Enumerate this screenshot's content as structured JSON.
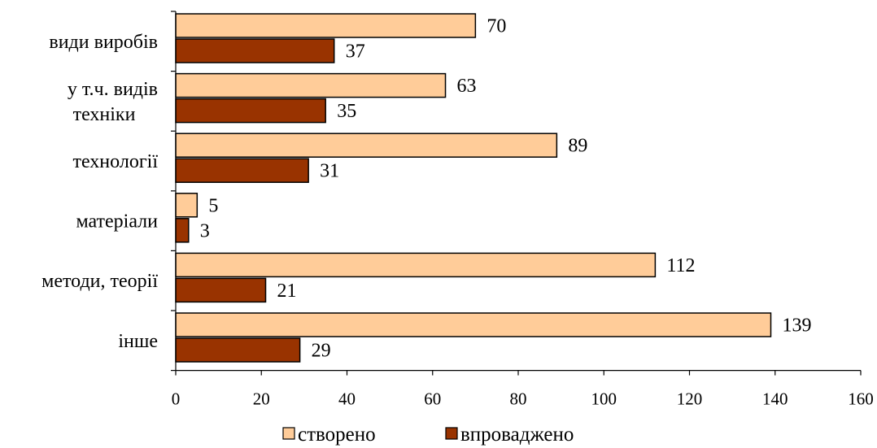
{
  "chart_data": {
    "type": "bar",
    "orientation": "horizontal",
    "categories": [
      "види виробів",
      "у т.ч. видів техніки",
      "технології",
      "матеріали",
      "методи, теорії",
      "інше"
    ],
    "category_label_lines": [
      [
        "види виробів"
      ],
      [
        "у т.ч. видів",
        "техніки"
      ],
      [
        "технології"
      ],
      [
        "матеріали"
      ],
      [
        "методи, теорії"
      ],
      [
        "інше"
      ]
    ],
    "series": [
      {
        "name": "створено",
        "values": [
          70,
          63,
          89,
          5,
          112,
          139
        ],
        "color": "#FFCC99"
      },
      {
        "name": "впроваджено",
        "values": [
          37,
          35,
          31,
          3,
          21,
          29
        ],
        "color": "#993300"
      }
    ],
    "xlim": [
      0,
      160
    ],
    "xticks": [
      "0",
      "20",
      "40",
      "60",
      "80",
      "100",
      "120",
      "140",
      "160"
    ],
    "grid": false,
    "legend_position": "bottom",
    "title": "",
    "xlabel": "",
    "ylabel": ""
  }
}
